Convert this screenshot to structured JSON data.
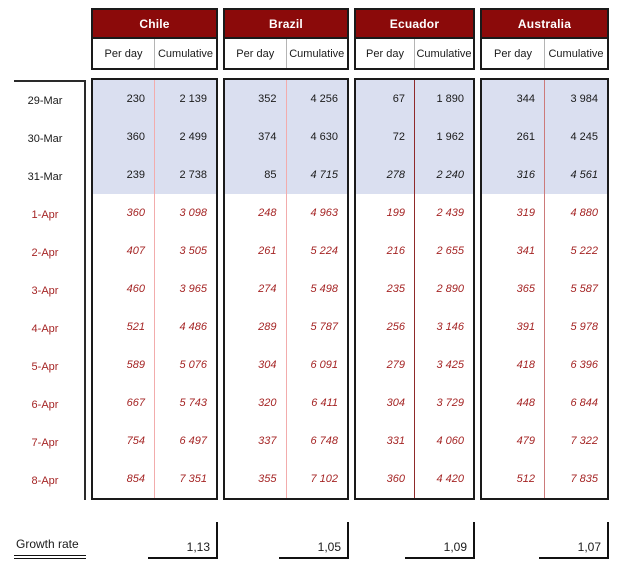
{
  "colors": {
    "header_bg": "#8B0A0A",
    "header_text": "#FFFFFF",
    "highlight_bg": "#DADFF0",
    "red_text": "#A52525",
    "black_text": "#1A1A1A"
  },
  "column_headers": {
    "per_day": "Per day",
    "cumulative": "Cumulative"
  },
  "dates": {
    "labels": [
      "29-Mar",
      "30-Mar",
      "31-Mar",
      "1-Apr",
      "2-Apr",
      "3-Apr",
      "4-Apr",
      "5-Apr",
      "6-Apr",
      "7-Apr",
      "8-Apr"
    ],
    "red_from_index": 3
  },
  "highlight_rows": 3,
  "red_rows_from": 3,
  "growth": {
    "label": "Growth rate"
  },
  "countries": [
    {
      "name": "Chile",
      "divider_color": "#F2ACAC",
      "growth_rate": "1,13",
      "rows": [
        {
          "per_day": "230",
          "cumulative": "2 139",
          "italic": [
            false,
            false
          ]
        },
        {
          "per_day": "360",
          "cumulative": "2 499",
          "italic": [
            false,
            false
          ]
        },
        {
          "per_day": "239",
          "cumulative": "2 738",
          "italic": [
            false,
            false
          ]
        },
        {
          "per_day": "360",
          "cumulative": "3 098",
          "italic": [
            true,
            true
          ]
        },
        {
          "per_day": "407",
          "cumulative": "3 505",
          "italic": [
            true,
            true
          ]
        },
        {
          "per_day": "460",
          "cumulative": "3 965",
          "italic": [
            true,
            true
          ]
        },
        {
          "per_day": "521",
          "cumulative": "4 486",
          "italic": [
            true,
            true
          ]
        },
        {
          "per_day": "589",
          "cumulative": "5 076",
          "italic": [
            true,
            true
          ]
        },
        {
          "per_day": "667",
          "cumulative": "5 743",
          "italic": [
            true,
            true
          ]
        },
        {
          "per_day": "754",
          "cumulative": "6 497",
          "italic": [
            true,
            true
          ]
        },
        {
          "per_day": "854",
          "cumulative": "7 351",
          "italic": [
            true,
            true
          ]
        }
      ]
    },
    {
      "name": "Brazil",
      "divider_color": "#F2ACAC",
      "growth_rate": "1,05",
      "rows": [
        {
          "per_day": "352",
          "cumulative": "4 256",
          "italic": [
            false,
            false
          ]
        },
        {
          "per_day": "374",
          "cumulative": "4 630",
          "italic": [
            false,
            false
          ]
        },
        {
          "per_day": "85",
          "cumulative": "4 715",
          "italic": [
            false,
            true
          ]
        },
        {
          "per_day": "248",
          "cumulative": "4 963",
          "italic": [
            true,
            true
          ]
        },
        {
          "per_day": "261",
          "cumulative": "5 224",
          "italic": [
            true,
            true
          ]
        },
        {
          "per_day": "274",
          "cumulative": "5 498",
          "italic": [
            true,
            true
          ]
        },
        {
          "per_day": "289",
          "cumulative": "5 787",
          "italic": [
            true,
            true
          ]
        },
        {
          "per_day": "304",
          "cumulative": "6 091",
          "italic": [
            true,
            true
          ]
        },
        {
          "per_day": "320",
          "cumulative": "6 411",
          "italic": [
            true,
            true
          ]
        },
        {
          "per_day": "337",
          "cumulative": "6 748",
          "italic": [
            true,
            true
          ]
        },
        {
          "per_day": "355",
          "cumulative": "7 102",
          "italic": [
            true,
            true
          ]
        }
      ]
    },
    {
      "name": "Ecuador",
      "divider_color": "#8F2A2A",
      "growth_rate": "1,09",
      "rows": [
        {
          "per_day": "67",
          "cumulative": "1 890",
          "italic": [
            false,
            false
          ]
        },
        {
          "per_day": "72",
          "cumulative": "1 962",
          "italic": [
            false,
            false
          ]
        },
        {
          "per_day": "278",
          "cumulative": "2 240",
          "italic": [
            true,
            true
          ]
        },
        {
          "per_day": "199",
          "cumulative": "2 439",
          "italic": [
            true,
            true
          ]
        },
        {
          "per_day": "216",
          "cumulative": "2 655",
          "italic": [
            true,
            true
          ]
        },
        {
          "per_day": "235",
          "cumulative": "2 890",
          "italic": [
            true,
            true
          ]
        },
        {
          "per_day": "256",
          "cumulative": "3 146",
          "italic": [
            true,
            true
          ]
        },
        {
          "per_day": "279",
          "cumulative": "3 425",
          "italic": [
            true,
            true
          ]
        },
        {
          "per_day": "304",
          "cumulative": "3 729",
          "italic": [
            true,
            true
          ]
        },
        {
          "per_day": "331",
          "cumulative": "4 060",
          "italic": [
            true,
            true
          ]
        },
        {
          "per_day": "360",
          "cumulative": "4 420",
          "italic": [
            true,
            true
          ]
        }
      ]
    },
    {
      "name": "Australia",
      "divider_color": "#CC7A7A",
      "growth_rate": "1,07",
      "rows": [
        {
          "per_day": "344",
          "cumulative": "3 984",
          "italic": [
            false,
            false
          ]
        },
        {
          "per_day": "261",
          "cumulative": "4 245",
          "italic": [
            false,
            false
          ]
        },
        {
          "per_day": "316",
          "cumulative": "4 561",
          "italic": [
            true,
            true
          ]
        },
        {
          "per_day": "319",
          "cumulative": "4 880",
          "italic": [
            true,
            true
          ]
        },
        {
          "per_day": "341",
          "cumulative": "5 222",
          "italic": [
            true,
            true
          ]
        },
        {
          "per_day": "365",
          "cumulative": "5 587",
          "italic": [
            true,
            true
          ]
        },
        {
          "per_day": "391",
          "cumulative": "5 978",
          "italic": [
            true,
            true
          ]
        },
        {
          "per_day": "418",
          "cumulative": "6 396",
          "italic": [
            true,
            true
          ]
        },
        {
          "per_day": "448",
          "cumulative": "6 844",
          "italic": [
            true,
            true
          ]
        },
        {
          "per_day": "479",
          "cumulative": "7 322",
          "italic": [
            true,
            true
          ]
        },
        {
          "per_day": "512",
          "cumulative": "7 835",
          "italic": [
            true,
            true
          ]
        }
      ]
    }
  ]
}
